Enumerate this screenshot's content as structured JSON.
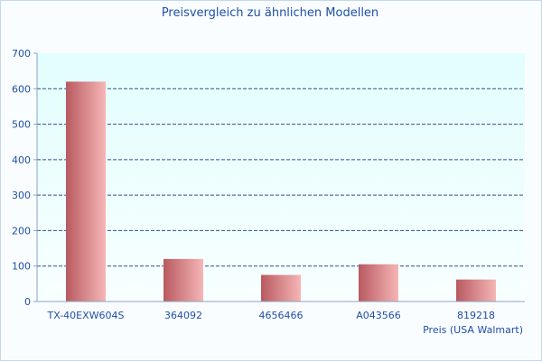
{
  "chart_data": {
    "type": "bar",
    "title": "Preisvergleich zu ähnlichen Modellen",
    "xlabel": "Preis (USA Walmart)",
    "ylabel": "",
    "categories": [
      "TX-40EXW604S",
      "364092",
      "4656466",
      "A043566",
      "819218"
    ],
    "values": [
      620,
      120,
      75,
      105,
      62
    ],
    "ylim": [
      0,
      700
    ],
    "yticks": [
      0,
      100,
      200,
      300,
      400,
      500,
      600,
      700
    ],
    "grid": true,
    "colors": {
      "bar_dark": "#b85a5f",
      "bar_light": "#f6b6b6",
      "plot_bg_top": "#e2fefe",
      "plot_bg_bottom": "#f8ffff",
      "grid": "#2f4f8f",
      "text": "#1f4fa8"
    }
  }
}
